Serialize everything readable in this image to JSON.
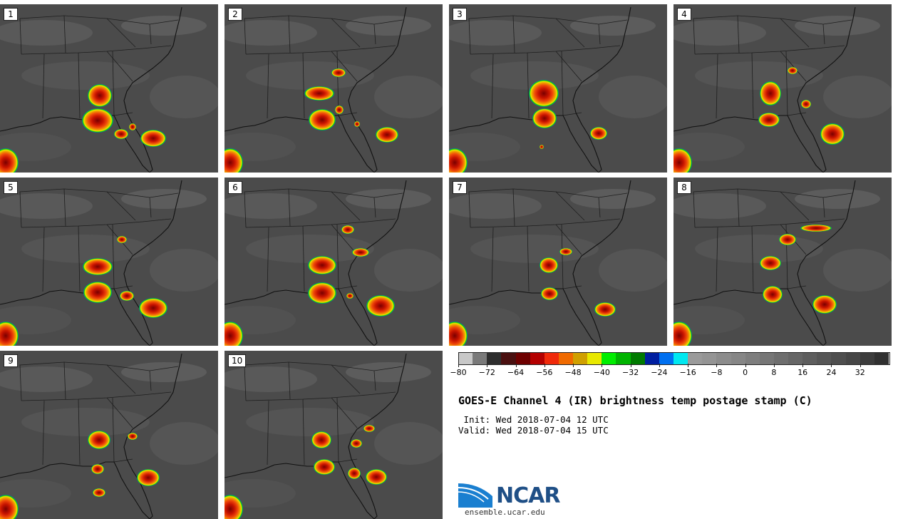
{
  "panels": [
    {
      "label": "1"
    },
    {
      "label": "2"
    },
    {
      "label": "3"
    },
    {
      "label": "4"
    },
    {
      "label": "5"
    },
    {
      "label": "6"
    },
    {
      "label": "7"
    },
    {
      "label": "8"
    },
    {
      "label": "9"
    },
    {
      "label": "10"
    }
  ],
  "colorbar": {
    "colors": [
      "#c8c8c8",
      "#7a7a7a",
      "#2e2e2e",
      "#4a1010",
      "#6e0000",
      "#b40000",
      "#f02a0a",
      "#f06a00",
      "#d0a000",
      "#e8e800",
      "#00ee00",
      "#00b400",
      "#007a00",
      "#001ea0",
      "#0070f0",
      "#00e8f0",
      "#9a9a9a",
      "#949494",
      "#8c8c8c",
      "#868686",
      "#7e7e7e",
      "#767676",
      "#6e6e6e",
      "#666666",
      "#5e5e5e",
      "#565656",
      "#4e4e4e",
      "#464646",
      "#3c3c3c",
      "#303030"
    ],
    "tick_labels": [
      "-80",
      "-72",
      "-64",
      "-56",
      "-48",
      "-40",
      "-32",
      "-24",
      "-16",
      "-8",
      "0",
      "8",
      "16",
      "24",
      "32"
    ]
  },
  "title": "GOES-E Channel 4 (IR) brightness temp postage stamp (C)",
  "init": " Init: Wed 2018-07-04 12 UTC",
  "valid": "Valid: Wed 2018-07-04 15 UTC",
  "logo": {
    "text": "NCAR",
    "url": "ensemble.ucar.edu",
    "color": "#1f4f86",
    "accent": "#1a7fd0"
  }
}
